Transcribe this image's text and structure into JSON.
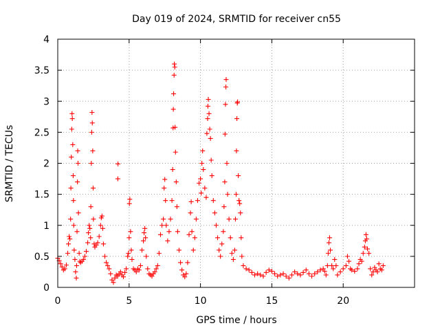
{
  "chart_data": {
    "type": "scatter",
    "title": "Day 019 of 2024, SRMTID for receiver cn55",
    "xlabel": "GPS time / hours",
    "ylabel": "SRMTID / TECUs",
    "xlim": [
      0,
      25
    ],
    "ylim": [
      0,
      4
    ],
    "xticks": [
      0,
      5,
      10,
      15,
      20
    ],
    "xtick_labels": [
      "0",
      "5",
      "10",
      "15",
      "20"
    ],
    "yticks": [
      0,
      0.5,
      1,
      1.5,
      2,
      2.5,
      3,
      3.5,
      4
    ],
    "ytick_labels": [
      "0",
      "0.5",
      "1",
      "1.5",
      "2",
      "2.5",
      "3",
      "3.5",
      "4"
    ],
    "grid": true,
    "marker": "+",
    "color": "#ff0000",
    "series": [
      {
        "name": "cn55",
        "points": [
          [
            0.0,
            0.47
          ],
          [
            0.1,
            0.43
          ],
          [
            0.2,
            0.38
          ],
          [
            0.3,
            0.33
          ],
          [
            0.4,
            0.28
          ],
          [
            0.5,
            0.3
          ],
          [
            0.6,
            0.36
          ],
          [
            0.7,
            0.55
          ],
          [
            0.75,
            0.7
          ],
          [
            0.8,
            0.82
          ],
          [
            0.85,
            0.78
          ],
          [
            0.9,
            1.1
          ],
          [
            0.92,
            1.6
          ],
          [
            0.95,
            2.1
          ],
          [
            0.98,
            2.55
          ],
          [
            1.0,
            2.8
          ],
          [
            1.02,
            2.72
          ],
          [
            1.05,
            2.3
          ],
          [
            1.08,
            1.8
          ],
          [
            1.1,
            1.4
          ],
          [
            1.12,
            1.0
          ],
          [
            1.15,
            0.6
          ],
          [
            1.2,
            0.45
          ],
          [
            1.25,
            0.25
          ],
          [
            1.3,
            0.15
          ],
          [
            1.32,
            0.35
          ],
          [
            1.35,
            0.9
          ],
          [
            1.38,
            1.7
          ],
          [
            1.4,
            2.2
          ],
          [
            1.42,
            2.0
          ],
          [
            1.45,
            1.2
          ],
          [
            1.5,
            0.55
          ],
          [
            1.55,
            0.42
          ],
          [
            1.6,
            0.4
          ],
          [
            1.7,
            0.42
          ],
          [
            1.8,
            0.45
          ],
          [
            1.9,
            0.5
          ],
          [
            2.0,
            0.58
          ],
          [
            2.1,
            0.72
          ],
          [
            2.15,
            0.88
          ],
          [
            2.2,
            1.0
          ],
          [
            2.25,
            0.95
          ],
          [
            2.3,
            0.8
          ],
          [
            2.32,
            1.3
          ],
          [
            2.35,
            2.0
          ],
          [
            2.38,
            2.5
          ],
          [
            2.4,
            2.82
          ],
          [
            2.42,
            2.65
          ],
          [
            2.45,
            2.2
          ],
          [
            2.48,
            1.6
          ],
          [
            2.5,
            1.1
          ],
          [
            2.55,
            0.7
          ],
          [
            2.6,
            0.65
          ],
          [
            2.7,
            0.68
          ],
          [
            2.8,
            0.72
          ],
          [
            2.9,
            0.82
          ],
          [
            3.0,
            1.0
          ],
          [
            3.05,
            1.12
          ],
          [
            3.1,
            1.15
          ],
          [
            3.15,
            0.95
          ],
          [
            3.2,
            0.7
          ],
          [
            3.3,
            0.5
          ],
          [
            3.4,
            0.4
          ],
          [
            3.5,
            0.35
          ],
          [
            3.6,
            0.3
          ],
          [
            3.7,
            0.22
          ],
          [
            3.8,
            0.12
          ],
          [
            3.9,
            0.08
          ],
          [
            4.0,
            0.15
          ],
          [
            4.1,
            0.2
          ],
          [
            4.2,
            0.18
          ],
          [
            4.21,
            1.75
          ],
          [
            4.22,
            1.99
          ],
          [
            4.3,
            0.22
          ],
          [
            4.4,
            0.25
          ],
          [
            4.5,
            0.2
          ],
          [
            4.6,
            0.17
          ],
          [
            4.7,
            0.24
          ],
          [
            4.8,
            0.3
          ],
          [
            4.9,
            0.5
          ],
          [
            4.95,
            0.55
          ],
          [
            5.0,
            0.8
          ],
          [
            5.02,
            1.35
          ],
          [
            5.05,
            1.42
          ],
          [
            5.1,
            0.9
          ],
          [
            5.15,
            0.6
          ],
          [
            5.2,
            0.45
          ],
          [
            5.3,
            0.3
          ],
          [
            5.4,
            0.28
          ],
          [
            5.5,
            0.25
          ],
          [
            5.6,
            0.3
          ],
          [
            5.7,
            0.28
          ],
          [
            5.8,
            0.35
          ],
          [
            5.9,
            0.6
          ],
          [
            6.0,
            0.75
          ],
          [
            6.05,
            0.88
          ],
          [
            6.1,
            0.95
          ],
          [
            6.15,
            0.8
          ],
          [
            6.2,
            0.5
          ],
          [
            6.3,
            0.3
          ],
          [
            6.4,
            0.22
          ],
          [
            6.5,
            0.2
          ],
          [
            6.6,
            0.18
          ],
          [
            6.7,
            0.22
          ],
          [
            6.8,
            0.25
          ],
          [
            6.9,
            0.3
          ],
          [
            7.0,
            0.35
          ],
          [
            7.1,
            0.55
          ],
          [
            7.2,
            0.85
          ],
          [
            7.3,
            1.0
          ],
          [
            7.4,
            1.1
          ],
          [
            7.45,
            1.6
          ],
          [
            7.5,
            1.74
          ],
          [
            7.55,
            1.4
          ],
          [
            7.6,
            1.0
          ],
          [
            7.7,
            0.75
          ],
          [
            7.8,
            0.9
          ],
          [
            7.9,
            1.1
          ],
          [
            8.0,
            1.4
          ],
          [
            8.05,
            1.9
          ],
          [
            8.08,
            2.57
          ],
          [
            8.1,
            2.87
          ],
          [
            8.12,
            3.12
          ],
          [
            8.15,
            3.42
          ],
          [
            8.17,
            3.6
          ],
          [
            8.2,
            3.55
          ],
          [
            8.22,
            2.58
          ],
          [
            8.25,
            2.18
          ],
          [
            8.3,
            1.7
          ],
          [
            8.35,
            1.3
          ],
          [
            8.4,
            0.9
          ],
          [
            8.5,
            0.6
          ],
          [
            8.6,
            0.4
          ],
          [
            8.7,
            0.28
          ],
          [
            8.8,
            0.2
          ],
          [
            8.9,
            0.17
          ],
          [
            9.0,
            0.22
          ],
          [
            9.1,
            0.4
          ],
          [
            9.2,
            0.85
          ],
          [
            9.3,
            1.2
          ],
          [
            9.35,
            1.38
          ],
          [
            9.4,
            0.9
          ],
          [
            9.5,
            0.6
          ],
          [
            9.6,
            0.8
          ],
          [
            9.7,
            1.1
          ],
          [
            9.8,
            1.4
          ],
          [
            9.9,
            1.68
          ],
          [
            10.0,
            1.75
          ],
          [
            10.05,
            1.52
          ],
          [
            10.1,
            2.0
          ],
          [
            10.15,
            2.2
          ],
          [
            10.2,
            1.9
          ],
          [
            10.3,
            1.6
          ],
          [
            10.4,
            1.45
          ],
          [
            10.45,
            2.48
          ],
          [
            10.5,
            2.72
          ],
          [
            10.52,
            2.92
          ],
          [
            10.55,
            3.03
          ],
          [
            10.6,
            2.8
          ],
          [
            10.65,
            2.55
          ],
          [
            10.7,
            2.4
          ],
          [
            10.75,
            2.05
          ],
          [
            10.8,
            1.8
          ],
          [
            10.9,
            1.4
          ],
          [
            11.0,
            1.2
          ],
          [
            11.1,
            1.0
          ],
          [
            11.2,
            0.8
          ],
          [
            11.3,
            0.6
          ],
          [
            11.4,
            0.5
          ],
          [
            11.5,
            0.7
          ],
          [
            11.6,
            0.9
          ],
          [
            11.65,
            1.3
          ],
          [
            11.7,
            1.7
          ],
          [
            11.72,
            2.47
          ],
          [
            11.75,
            2.95
          ],
          [
            11.78,
            3.23
          ],
          [
            11.8,
            3.35
          ],
          [
            11.85,
            2.0
          ],
          [
            11.9,
            1.5
          ],
          [
            12.0,
            1.1
          ],
          [
            12.1,
            0.8
          ],
          [
            12.2,
            0.55
          ],
          [
            12.3,
            0.45
          ],
          [
            12.4,
            0.6
          ],
          [
            12.45,
            1.1
          ],
          [
            12.5,
            1.5
          ],
          [
            12.52,
            2.2
          ],
          [
            12.55,
            2.72
          ],
          [
            12.58,
            2.97
          ],
          [
            12.6,
            2.99
          ],
          [
            12.65,
            1.8
          ],
          [
            12.7,
            1.4
          ],
          [
            12.75,
            1.35
          ],
          [
            12.8,
            1.2
          ],
          [
            12.85,
            0.8
          ],
          [
            12.9,
            0.5
          ],
          [
            13.0,
            0.35
          ],
          [
            13.2,
            0.3
          ],
          [
            13.4,
            0.28
          ],
          [
            13.6,
            0.24
          ],
          [
            13.8,
            0.2
          ],
          [
            14.0,
            0.22
          ],
          [
            14.2,
            0.2
          ],
          [
            14.4,
            0.18
          ],
          [
            14.6,
            0.24
          ],
          [
            14.8,
            0.28
          ],
          [
            15.0,
            0.26
          ],
          [
            15.2,
            0.22
          ],
          [
            15.4,
            0.18
          ],
          [
            15.6,
            0.2
          ],
          [
            15.8,
            0.22
          ],
          [
            16.0,
            0.18
          ],
          [
            16.2,
            0.15
          ],
          [
            16.4,
            0.2
          ],
          [
            16.6,
            0.25
          ],
          [
            16.8,
            0.22
          ],
          [
            17.0,
            0.2
          ],
          [
            17.2,
            0.24
          ],
          [
            17.4,
            0.28
          ],
          [
            17.6,
            0.22
          ],
          [
            17.8,
            0.18
          ],
          [
            18.0,
            0.22
          ],
          [
            18.2,
            0.25
          ],
          [
            18.4,
            0.28
          ],
          [
            18.6,
            0.3
          ],
          [
            18.7,
            0.26
          ],
          [
            18.8,
            0.2
          ],
          [
            18.9,
            0.35
          ],
          [
            18.95,
            0.55
          ],
          [
            19.0,
            0.72
          ],
          [
            19.05,
            0.8
          ],
          [
            19.1,
            0.6
          ],
          [
            19.2,
            0.35
          ],
          [
            19.3,
            0.3
          ],
          [
            19.4,
            0.45
          ],
          [
            19.5,
            0.35
          ],
          [
            19.6,
            0.2
          ],
          [
            19.8,
            0.25
          ],
          [
            20.0,
            0.3
          ],
          [
            20.2,
            0.35
          ],
          [
            20.3,
            0.5
          ],
          [
            20.4,
            0.42
          ],
          [
            20.5,
            0.3
          ],
          [
            20.6,
            0.28
          ],
          [
            20.8,
            0.26
          ],
          [
            21.0,
            0.3
          ],
          [
            21.1,
            0.38
          ],
          [
            21.2,
            0.45
          ],
          [
            21.3,
            0.42
          ],
          [
            21.4,
            0.55
          ],
          [
            21.5,
            0.65
          ],
          [
            21.55,
            0.75
          ],
          [
            21.6,
            0.85
          ],
          [
            21.65,
            0.78
          ],
          [
            21.7,
            0.62
          ],
          [
            21.8,
            0.55
          ],
          [
            21.9,
            0.3
          ],
          [
            22.0,
            0.2
          ],
          [
            22.1,
            0.25
          ],
          [
            22.2,
            0.32
          ],
          [
            22.3,
            0.28
          ],
          [
            22.4,
            0.25
          ],
          [
            22.5,
            0.38
          ],
          [
            22.6,
            0.3
          ],
          [
            22.7,
            0.28
          ],
          [
            22.8,
            0.35
          ]
        ]
      }
    ]
  }
}
